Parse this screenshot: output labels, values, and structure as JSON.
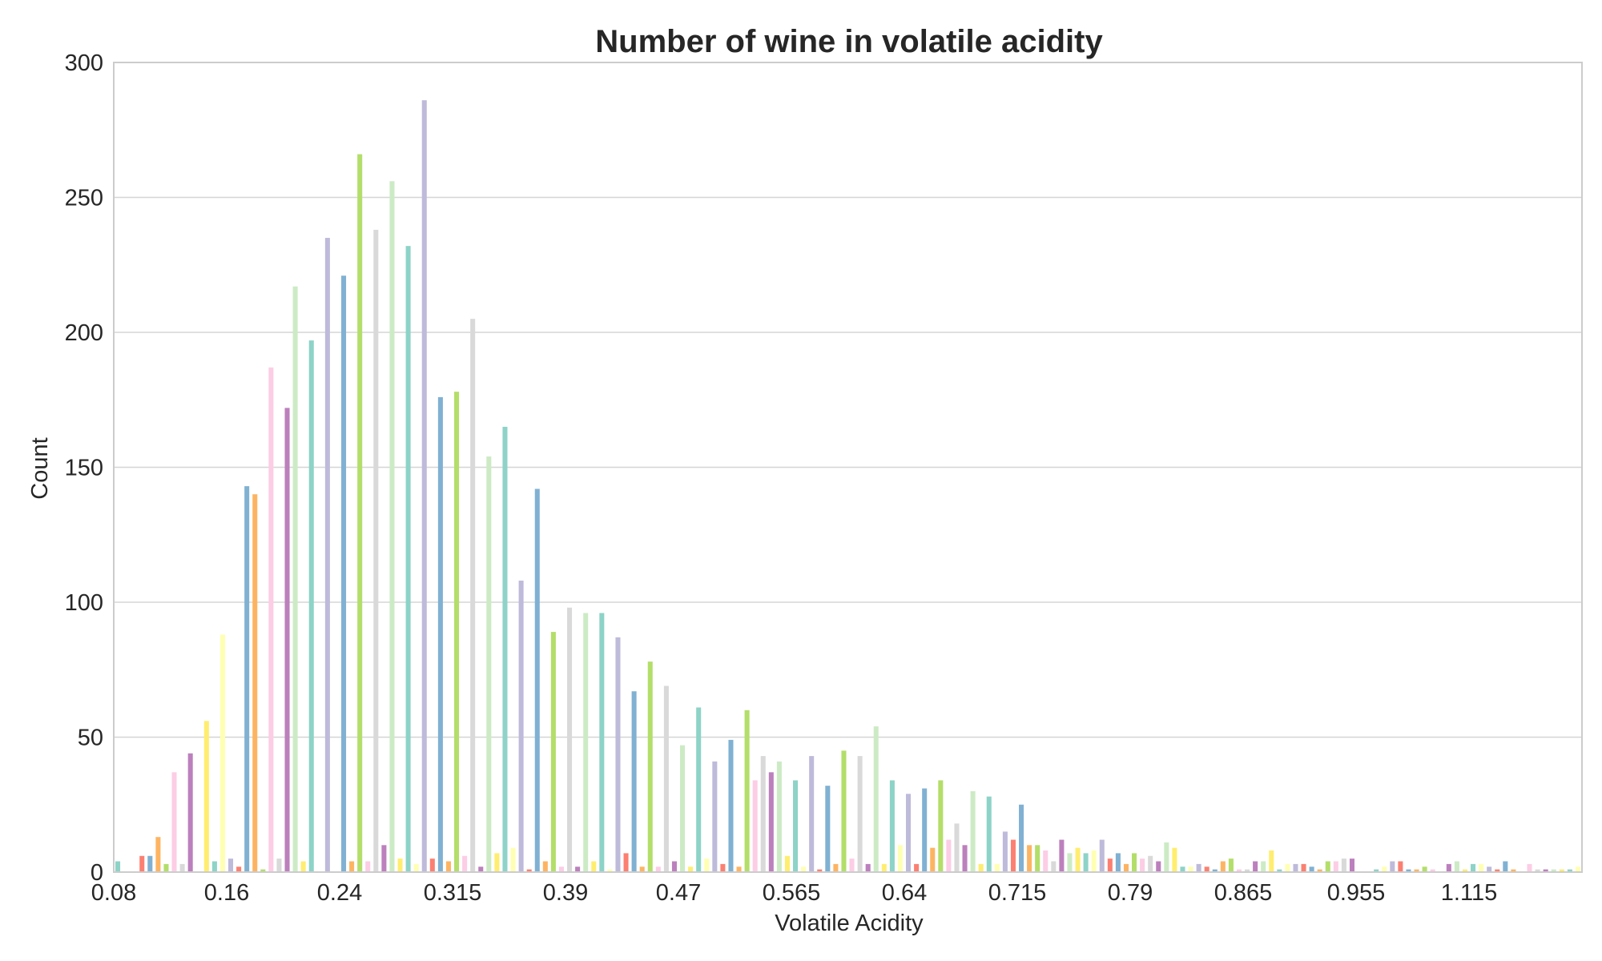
{
  "chart_data": {
    "type": "bar",
    "title": "Number of wine in volatile acidity",
    "xlabel": "Volatile Acidity",
    "ylabel": "Count",
    "ylim": [
      0,
      300
    ],
    "yticks": [
      "0",
      "50",
      "100",
      "150",
      "200",
      "250",
      "300"
    ],
    "xtick_labels": [
      "0.08",
      "0.16",
      "0.24",
      "0.315",
      "0.39",
      "0.47",
      "0.565",
      "0.64",
      "0.715",
      "0.79",
      "0.865",
      "0.955",
      "1.115"
    ],
    "grid": "horizontal",
    "palette": [
      "#8dd3c7",
      "#ffffb3",
      "#bebada",
      "#fb8072",
      "#80b1d3",
      "#fdb462",
      "#b3de69",
      "#fccde5",
      "#d9d9d9",
      "#bc80bd",
      "#ccebc5",
      "#ffed6f"
    ],
    "values": [
      4,
      0,
      0,
      6,
      6,
      13,
      3,
      37,
      3,
      44,
      0,
      56,
      4,
      88,
      5,
      2,
      143,
      140,
      1,
      187,
      5,
      172,
      217,
      4,
      197,
      0,
      235,
      0,
      221,
      4,
      266,
      4,
      238,
      10,
      256,
      5,
      232,
      3,
      286,
      5,
      176,
      4,
      178,
      6,
      205,
      2,
      154,
      7,
      165,
      9,
      108,
      1,
      142,
      4,
      89,
      2,
      98,
      2,
      96,
      4,
      96,
      1,
      87,
      7,
      67,
      2,
      78,
      2,
      69,
      4,
      47,
      2,
      61,
      5,
      41,
      3,
      49,
      2,
      60,
      34,
      43,
      37,
      41,
      6,
      34,
      2,
      43,
      1,
      32,
      3,
      45,
      5,
      43,
      3,
      54,
      3,
      34,
      10,
      29,
      3,
      31,
      9,
      34,
      12,
      18,
      10,
      30,
      3,
      28,
      3,
      15,
      12,
      25,
      10,
      10,
      8,
      4,
      12,
      7,
      9,
      7,
      8,
      12,
      5,
      7,
      3,
      7,
      5,
      6,
      4,
      11,
      9,
      2,
      2,
      3,
      2,
      1,
      4,
      5,
      1,
      1,
      4,
      4,
      8,
      1,
      3,
      3,
      3,
      2,
      1,
      4,
      4,
      5,
      5,
      0,
      0,
      1,
      2,
      4,
      4,
      1,
      1,
      2,
      1,
      0,
      3,
      4,
      1,
      3,
      3,
      2,
      1,
      4,
      1,
      0,
      3,
      1,
      1,
      1,
      1,
      1,
      2
    ]
  }
}
